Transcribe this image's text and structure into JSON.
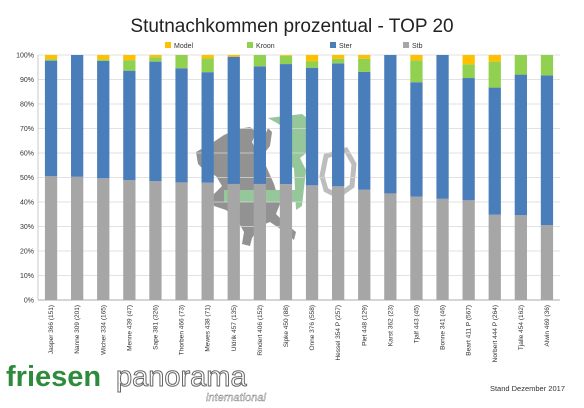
{
  "chart_data": {
    "type": "bar",
    "stacked": true,
    "title": "Stutnachkommen prozentual - TOP 20",
    "ylim": [
      0,
      100
    ],
    "yticks": [
      "0%",
      "10%",
      "20%",
      "30%",
      "40%",
      "50%",
      "60%",
      "70%",
      "80%",
      "90%",
      "100%"
    ],
    "legend_position": "top",
    "categories": [
      "Jasper 366 (151)",
      "Nanne 309 (201)",
      "Wicher 334 (165)",
      "Menne 439 (47)",
      "Sape 381 (326)",
      "Thorben 466 (73)",
      "Mewes 438 (71)",
      "Uldrik 457 (135)",
      "Rindert 406 (152)",
      "Sipke 450 (88)",
      "Onne 376 (558)",
      "Hessel 354 P (257)",
      "Piet 448 (129)",
      "Karst 362 (23)",
      "Tjalf 443 (45)",
      "Bonne 341 (46)",
      "Beart 411 P (567)",
      "Norbert 444 P (264)",
      "Tjalle 454 (162)",
      "Alwin 469 (36)"
    ],
    "series": [
      {
        "name": "Stb",
        "color": "#a6a6a6",
        "values": [
          50.5,
          50.3,
          49.7,
          48.9,
          48.5,
          48.0,
          47.9,
          47.4,
          47.4,
          47.3,
          46.8,
          46.4,
          45.0,
          43.5,
          42.2,
          41.3,
          40.7,
          34.8,
          34.6,
          30.6
        ]
      },
      {
        "name": "Ster",
        "color": "#4a7ebb",
        "values": [
          47.2,
          49.7,
          47.9,
          44.7,
          48.8,
          46.6,
          45.1,
          51.9,
          48.0,
          49.0,
          48.0,
          50.2,
          48.1,
          56.5,
          46.7,
          58.7,
          49.9,
          51.9,
          57.4,
          61.1
        ]
      },
      {
        "name": "Kroon",
        "color": "#92d050",
        "values": [
          0.6,
          0.0,
          0.6,
          4.3,
          1.8,
          5.4,
          5.6,
          0.0,
          4.6,
          3.4,
          2.7,
          1.9,
          5.4,
          0.0,
          8.9,
          0.0,
          5.6,
          10.6,
          8.0,
          8.3
        ]
      },
      {
        "name": "Model",
        "color": "#ffc000",
        "values": [
          1.7,
          0.0,
          1.8,
          2.1,
          0.9,
          0.0,
          1.4,
          0.7,
          0.0,
          0.3,
          2.5,
          1.5,
          1.5,
          0.0,
          2.2,
          0.0,
          3.8,
          2.7,
          0.0,
          0.0
        ]
      }
    ],
    "legend_order": [
      "Model",
      "Kroon",
      "Ster",
      "Stb"
    ]
  },
  "footer": {
    "logo_part1": "friesen",
    "logo_part2": "panorama",
    "logo_sub": "international",
    "stand": "Stand Dezember 2017"
  }
}
